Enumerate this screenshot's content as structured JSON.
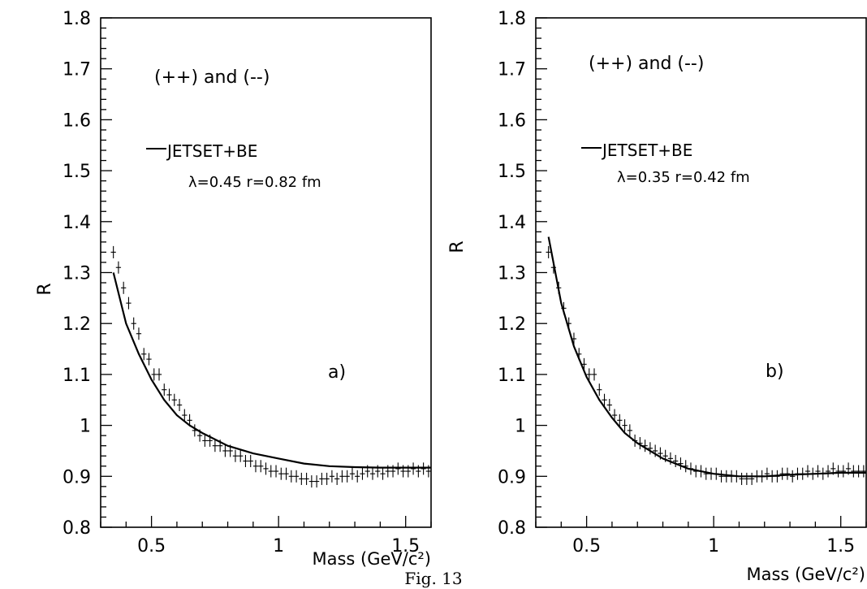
{
  "figure": {
    "caption": "Fig. 13"
  },
  "chart_data": [
    {
      "panel": "a",
      "type": "scatter",
      "title": "",
      "xlabel": "Mass (GeV/c²)",
      "ylabel": "R",
      "xlim": [
        0.3,
        1.6
      ],
      "ylim": [
        0.8,
        1.8
      ],
      "xticks": [
        "0.5",
        "1",
        "1.5"
      ],
      "yticks": [
        "0.8",
        "0.9",
        "1",
        "1.1",
        "1.2",
        "1.3",
        "1.4",
        "1.5",
        "1.6",
        "1.7",
        "1.8"
      ],
      "annotations": {
        "charge": "(++) and (--)",
        "panel_label": "a)"
      },
      "legend": {
        "label": "JETSET+BE",
        "params": "λ=0.45 r=0.82 fm"
      },
      "data_series": {
        "name": "data",
        "x": [
          0.35,
          0.37,
          0.39,
          0.41,
          0.43,
          0.45,
          0.47,
          0.49,
          0.51,
          0.53,
          0.55,
          0.57,
          0.59,
          0.61,
          0.63,
          0.65,
          0.67,
          0.69,
          0.71,
          0.73,
          0.75,
          0.77,
          0.79,
          0.81,
          0.83,
          0.85,
          0.87,
          0.89,
          0.91,
          0.93,
          0.95,
          0.97,
          0.99,
          1.01,
          1.03,
          1.05,
          1.07,
          1.09,
          1.11,
          1.13,
          1.15,
          1.17,
          1.19,
          1.21,
          1.23,
          1.25,
          1.27,
          1.29,
          1.31,
          1.33,
          1.35,
          1.37,
          1.39,
          1.41,
          1.43,
          1.45,
          1.47,
          1.49,
          1.51,
          1.53,
          1.55,
          1.57,
          1.59
        ],
        "y": [
          1.34,
          1.31,
          1.27,
          1.24,
          1.2,
          1.18,
          1.14,
          1.13,
          1.1,
          1.1,
          1.07,
          1.06,
          1.05,
          1.04,
          1.02,
          1.01,
          0.99,
          0.98,
          0.97,
          0.97,
          0.96,
          0.96,
          0.95,
          0.95,
          0.94,
          0.94,
          0.93,
          0.93,
          0.92,
          0.92,
          0.915,
          0.91,
          0.91,
          0.905,
          0.905,
          0.9,
          0.9,
          0.895,
          0.895,
          0.89,
          0.89,
          0.895,
          0.895,
          0.9,
          0.895,
          0.9,
          0.9,
          0.905,
          0.9,
          0.905,
          0.91,
          0.905,
          0.91,
          0.905,
          0.91,
          0.91,
          0.915,
          0.91,
          0.91,
          0.915,
          0.91,
          0.915,
          0.91
        ],
        "err": 0.012
      },
      "fit_series": {
        "name": "JETSET+BE",
        "x": [
          0.35,
          0.4,
          0.45,
          0.5,
          0.55,
          0.6,
          0.65,
          0.7,
          0.8,
          0.9,
          1.0,
          1.1,
          1.2,
          1.3,
          1.4,
          1.5,
          1.6
        ],
        "y": [
          1.3,
          1.2,
          1.14,
          1.09,
          1.05,
          1.02,
          1.0,
          0.985,
          0.96,
          0.945,
          0.935,
          0.925,
          0.92,
          0.918,
          0.917,
          0.917,
          0.917
        ]
      }
    },
    {
      "panel": "b",
      "type": "scatter",
      "title": "",
      "xlabel": "Mass (GeV/c²)",
      "ylabel": "R",
      "xlim": [
        0.3,
        1.6
      ],
      "ylim": [
        0.8,
        1.8
      ],
      "xticks": [
        "0.5",
        "1",
        "1.5"
      ],
      "yticks": [
        "0.8",
        "0.9",
        "1",
        "1.1",
        "1.2",
        "1.3",
        "1.4",
        "1.5",
        "1.6",
        "1.7",
        "1.8"
      ],
      "annotations": {
        "charge": "(++) and (--)",
        "panel_label": "b)"
      },
      "legend": {
        "label": "JETSET+BE",
        "params": "λ=0.35 r=0.42 fm"
      },
      "data_series": {
        "name": "data",
        "x": [
          0.35,
          0.37,
          0.39,
          0.41,
          0.43,
          0.45,
          0.47,
          0.49,
          0.51,
          0.53,
          0.55,
          0.57,
          0.59,
          0.61,
          0.63,
          0.65,
          0.67,
          0.69,
          0.71,
          0.73,
          0.75,
          0.77,
          0.79,
          0.81,
          0.83,
          0.85,
          0.87,
          0.89,
          0.91,
          0.93,
          0.95,
          0.97,
          0.99,
          1.01,
          1.03,
          1.05,
          1.07,
          1.09,
          1.11,
          1.13,
          1.15,
          1.17,
          1.19,
          1.21,
          1.23,
          1.25,
          1.27,
          1.29,
          1.31,
          1.33,
          1.35,
          1.37,
          1.39,
          1.41,
          1.43,
          1.45,
          1.47,
          1.49,
          1.51,
          1.53,
          1.55,
          1.57,
          1.59
        ],
        "y": [
          1.34,
          1.31,
          1.27,
          1.23,
          1.2,
          1.17,
          1.14,
          1.12,
          1.1,
          1.1,
          1.07,
          1.05,
          1.04,
          1.02,
          1.01,
          1.0,
          0.99,
          0.97,
          0.965,
          0.96,
          0.955,
          0.95,
          0.945,
          0.94,
          0.935,
          0.93,
          0.925,
          0.92,
          0.915,
          0.91,
          0.91,
          0.905,
          0.905,
          0.905,
          0.9,
          0.9,
          0.9,
          0.9,
          0.895,
          0.895,
          0.895,
          0.9,
          0.9,
          0.905,
          0.9,
          0.9,
          0.905,
          0.905,
          0.9,
          0.905,
          0.905,
          0.91,
          0.905,
          0.91,
          0.905,
          0.91,
          0.915,
          0.91,
          0.91,
          0.915,
          0.91,
          0.91,
          0.91
        ],
        "err": 0.012
      },
      "fit_series": {
        "name": "JETSET+BE",
        "x": [
          0.35,
          0.4,
          0.45,
          0.5,
          0.55,
          0.6,
          0.65,
          0.7,
          0.8,
          0.9,
          1.0,
          1.1,
          1.2,
          1.3,
          1.4,
          1.5,
          1.6
        ],
        "y": [
          1.37,
          1.24,
          1.155,
          1.095,
          1.05,
          1.015,
          0.985,
          0.965,
          0.935,
          0.915,
          0.905,
          0.9,
          0.9,
          0.903,
          0.905,
          0.907,
          0.907
        ]
      }
    }
  ]
}
